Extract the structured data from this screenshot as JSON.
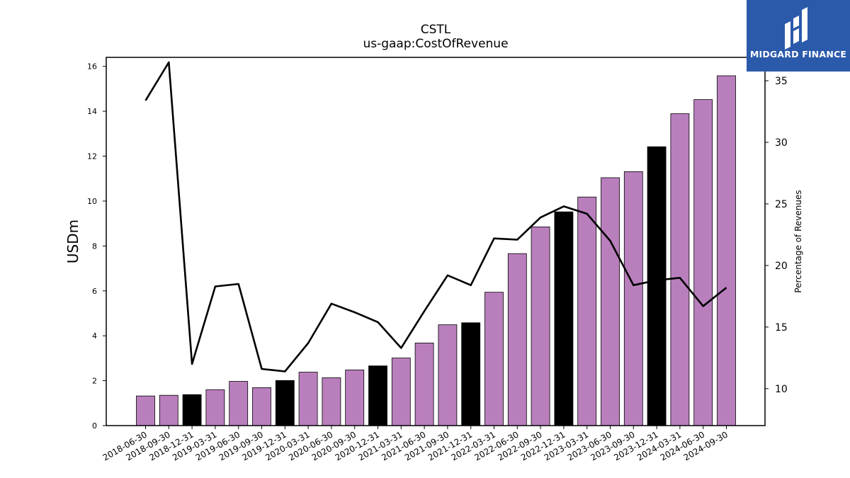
{
  "logo": {
    "text": "MIDGARD FINANCE",
    "background": "#2b5aab"
  },
  "chart_data": {
    "type": "bar",
    "title": "CSTL",
    "subtitle": "us-gaap:CostOfRevenue",
    "ylabel": "USDm",
    "y2label": "Percentage of Revenues",
    "ylim": [
      0,
      16.4
    ],
    "y2lim": [
      7,
      36.9
    ],
    "yticks": [
      0,
      2,
      4,
      6,
      8,
      10,
      12,
      14,
      16
    ],
    "y2ticks": [
      10,
      15,
      20,
      25,
      30,
      35
    ],
    "grid": false,
    "legend": "none",
    "bar_color": "#b97fbd",
    "highlight_color": "#000000",
    "line_color": "#000000",
    "categories": [
      "2018-06-30",
      "2018-09-30",
      "2018-12-31",
      "2019-03-31",
      "2019-06-30",
      "2019-09-30",
      "2019-12-31",
      "2020-03-31",
      "2020-06-30",
      "2020-09-30",
      "2020-12-31",
      "2021-03-31",
      "2021-06-30",
      "2021-09-30",
      "2021-12-31",
      "2022-03-31",
      "2022-06-30",
      "2022-09-30",
      "2022-12-31",
      "2023-03-31",
      "2023-06-30",
      "2023-09-30",
      "2023-12-31",
      "2024-03-31",
      "2024-06-30",
      "2024-09-30"
    ],
    "series": [
      {
        "type": "bar",
        "axis": "left",
        "values": [
          1.32,
          1.35,
          1.38,
          1.6,
          1.97,
          1.69,
          2.01,
          2.38,
          2.13,
          2.48,
          2.66,
          3.01,
          3.68,
          4.49,
          4.58,
          5.94,
          7.66,
          8.85,
          9.52,
          10.18,
          11.04,
          11.31,
          12.42,
          13.89,
          14.52,
          15.58
        ],
        "highlight": [
          false,
          false,
          true,
          false,
          false,
          false,
          true,
          false,
          false,
          false,
          true,
          false,
          false,
          false,
          true,
          false,
          false,
          false,
          true,
          false,
          false,
          false,
          true,
          false,
          false,
          false
        ]
      },
      {
        "type": "line",
        "axis": "right",
        "values": [
          33.4,
          36.5,
          12.0,
          18.3,
          18.5,
          11.6,
          11.4,
          13.7,
          16.9,
          16.2,
          15.4,
          13.3,
          16.3,
          19.2,
          18.4,
          22.2,
          22.1,
          23.9,
          24.8,
          24.2,
          22.0,
          18.4,
          18.8,
          19.0,
          16.7,
          18.2
        ]
      }
    ]
  }
}
